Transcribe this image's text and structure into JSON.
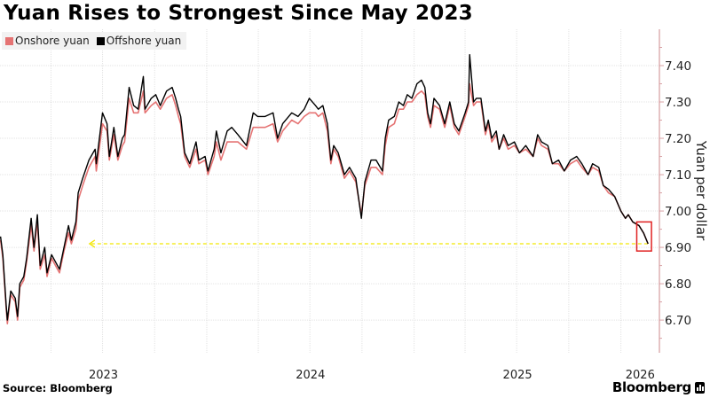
{
  "header": {
    "title": "Yuan Rises to Strongest Since May 2023"
  },
  "footer": {
    "source": "Source: Bloomberg",
    "brand": "Bloomberg"
  },
  "chart_data": {
    "type": "line",
    "title": "Yuan Rises to Strongest Since May 2023",
    "ylabel": "Yuan per dollar",
    "xlabel": "",
    "ylim": [
      6.61,
      7.5
    ],
    "xlim": [
      "2023-01-01",
      "2026-03-10"
    ],
    "y_axis_position": "right",
    "y_ticks": [
      "6.70",
      "6.80",
      "6.90",
      "7.00",
      "7.10",
      "7.20",
      "7.30",
      "7.40"
    ],
    "x_tick_labels": [
      "2023",
      "2024",
      "2025",
      "2026"
    ],
    "grid": true,
    "legend": {
      "placement": "top-left",
      "entries": [
        "Onshore yuan",
        "Offshore yuan"
      ]
    },
    "colors": {
      "onshore": "#e57373",
      "offshore": "#000000",
      "axis": "#d9a3a6",
      "reference": "#f2e600",
      "highlight_box": "#e02020"
    },
    "dates": [
      "2023-01-02",
      "2023-01-06",
      "2023-01-12",
      "2023-01-14",
      "2023-01-20",
      "2023-01-28",
      "2023-02-01",
      "2023-02-05",
      "2023-02-12",
      "2023-02-17",
      "2023-02-25",
      "2023-03-02",
      "2023-03-08",
      "2023-03-13",
      "2023-03-21",
      "2023-03-25",
      "2023-04-02",
      "2023-04-16",
      "2023-04-24",
      "2023-05-02",
      "2023-05-07",
      "2023-05-15",
      "2023-05-19",
      "2023-05-27",
      "2023-06-07",
      "2023-06-18",
      "2023-06-20",
      "2023-07-01",
      "2023-07-09",
      "2023-07-13",
      "2023-07-21",
      "2023-07-28",
      "2023-08-05",
      "2023-08-09",
      "2023-08-17",
      "2023-08-25",
      "2023-09-02",
      "2023-09-11",
      "2023-09-14",
      "2023-09-25",
      "2023-10-03",
      "2023-10-11",
      "2023-10-22",
      "2023-11-01",
      "2023-11-07",
      "2023-11-12",
      "2023-11-16",
      "2023-11-23",
      "2023-12-02",
      "2023-12-13",
      "2023-12-18",
      "2023-12-29",
      "2024-01-03",
      "2024-01-14",
      "2024-01-18",
      "2024-01-26",
      "2024-02-06",
      "2024-02-14",
      "2024-02-25",
      "2024-03-11",
      "2024-03-23",
      "2024-03-31",
      "2024-04-13",
      "2024-04-27",
      "2024-05-05",
      "2024-05-14",
      "2024-05-30",
      "2024-06-10",
      "2024-06-21",
      "2024-06-30",
      "2024-07-11",
      "2024-07-16",
      "2024-07-24",
      "2024-08-01",
      "2024-08-07",
      "2024-08-12",
      "2024-08-20",
      "2024-08-31",
      "2024-09-09",
      "2024-09-20",
      "2024-09-30",
      "2024-10-06",
      "2024-10-17",
      "2024-10-26",
      "2024-11-06",
      "2024-11-11",
      "2024-11-17",
      "2024-11-27",
      "2024-12-05",
      "2024-12-13",
      "2024-12-20",
      "2024-12-28",
      "2025-01-06",
      "2025-01-14",
      "2025-01-20",
      "2025-01-25",
      "2025-01-30",
      "2025-02-05",
      "2025-02-15",
      "2025-02-24",
      "2025-03-05",
      "2025-03-13",
      "2025-03-21",
      "2025-04-01",
      "2025-04-07",
      "2025-04-09",
      "2025-04-16",
      "2025-04-21",
      "2025-04-29",
      "2025-05-07",
      "2025-05-12",
      "2025-05-18",
      "2025-05-26",
      "2025-05-31",
      "2025-06-08",
      "2025-06-16",
      "2025-06-27",
      "2025-07-06",
      "2025-07-17",
      "2025-07-30",
      "2025-08-07",
      "2025-08-14",
      "2025-08-25",
      "2025-09-02",
      "2025-09-13",
      "2025-09-23",
      "2025-10-04",
      "2025-10-15",
      "2025-10-24",
      "2025-11-04",
      "2025-11-12",
      "2025-11-23",
      "2025-12-01",
      "2025-12-10",
      "2025-12-21",
      "2026-01-01",
      "2026-01-09",
      "2026-01-14",
      "2026-01-22",
      "2026-02-02",
      "2026-02-10",
      "2026-02-18"
    ],
    "series": [
      {
        "name": "Offshore yuan",
        "values": [
          6.93,
          6.88,
          6.74,
          6.7,
          6.78,
          6.76,
          6.71,
          6.8,
          6.82,
          6.87,
          6.98,
          6.9,
          6.99,
          6.85,
          6.9,
          6.83,
          6.88,
          6.84,
          6.9,
          6.96,
          6.92,
          6.97,
          7.05,
          7.09,
          7.14,
          7.17,
          7.13,
          7.27,
          7.24,
          7.15,
          7.23,
          7.15,
          7.2,
          7.21,
          7.34,
          7.29,
          7.28,
          7.37,
          7.28,
          7.31,
          7.32,
          7.29,
          7.33,
          7.34,
          7.31,
          7.28,
          7.26,
          7.16,
          7.13,
          7.19,
          7.14,
          7.15,
          7.11,
          7.17,
          7.22,
          7.16,
          7.22,
          7.23,
          7.21,
          7.18,
          7.27,
          7.26,
          7.26,
          7.27,
          7.2,
          7.24,
          7.27,
          7.26,
          7.28,
          7.31,
          7.29,
          7.28,
          7.29,
          7.24,
          7.14,
          7.18,
          7.16,
          7.1,
          7.12,
          7.09,
          6.98,
          7.08,
          7.14,
          7.14,
          7.11,
          7.2,
          7.25,
          7.26,
          7.3,
          7.29,
          7.32,
          7.31,
          7.35,
          7.36,
          7.34,
          7.27,
          7.24,
          7.31,
          7.29,
          7.24,
          7.3,
          7.24,
          7.22,
          7.27,
          7.3,
          7.43,
          7.3,
          7.31,
          7.31,
          7.22,
          7.25,
          7.2,
          7.22,
          7.17,
          7.21,
          7.18,
          7.19,
          7.16,
          7.18,
          7.15,
          7.21,
          7.19,
          7.18,
          7.13,
          7.14,
          7.11,
          7.14,
          7.15,
          7.13,
          7.1,
          7.13,
          7.12,
          7.07,
          7.06,
          7.04,
          7.0,
          6.98,
          6.99,
          6.97,
          6.96,
          6.94,
          6.91
        ]
      },
      {
        "name": "Onshore yuan",
        "values": [
          6.92,
          6.87,
          6.73,
          6.69,
          6.77,
          6.75,
          6.7,
          6.79,
          6.81,
          6.86,
          6.96,
          6.89,
          6.97,
          6.84,
          6.88,
          6.82,
          6.87,
          6.83,
          6.89,
          6.94,
          6.91,
          6.95,
          7.03,
          7.07,
          7.12,
          7.15,
          7.11,
          7.24,
          7.22,
          7.14,
          7.21,
          7.14,
          7.18,
          7.19,
          7.31,
          7.27,
          7.27,
          7.33,
          7.27,
          7.29,
          7.3,
          7.28,
          7.31,
          7.32,
          7.29,
          7.26,
          7.24,
          7.15,
          7.12,
          7.17,
          7.13,
          7.14,
          7.1,
          7.15,
          7.19,
          7.14,
          7.19,
          7.19,
          7.19,
          7.17,
          7.23,
          7.23,
          7.23,
          7.24,
          7.19,
          7.22,
          7.25,
          7.24,
          7.26,
          7.27,
          7.27,
          7.26,
          7.27,
          7.22,
          7.13,
          7.17,
          7.15,
          7.09,
          7.11,
          7.08,
          6.99,
          7.07,
          7.12,
          7.12,
          7.1,
          7.18,
          7.23,
          7.24,
          7.28,
          7.28,
          7.3,
          7.3,
          7.32,
          7.33,
          7.32,
          7.26,
          7.23,
          7.29,
          7.28,
          7.23,
          7.29,
          7.23,
          7.21,
          7.26,
          7.29,
          7.35,
          7.29,
          7.3,
          7.3,
          7.21,
          7.24,
          7.19,
          7.21,
          7.17,
          7.2,
          7.17,
          7.18,
          7.16,
          7.17,
          7.15,
          7.2,
          7.18,
          7.17,
          7.13,
          7.13,
          7.11,
          7.13,
          7.14,
          7.12,
          7.1,
          7.12,
          7.11,
          7.07,
          7.05,
          7.04,
          7.0,
          6.98,
          6.99,
          6.97,
          6.96,
          6.94,
          6.91
        ]
      }
    ],
    "annotations": {
      "reference_line": {
        "value": 6.91,
        "from": "2023-06-08",
        "to": "2026-02-18",
        "style": "dashed-arrow-left"
      },
      "highlight_box": {
        "from": "2026-01-29",
        "to": "2026-02-24",
        "ymin": 6.89,
        "ymax": 6.97
      }
    }
  }
}
